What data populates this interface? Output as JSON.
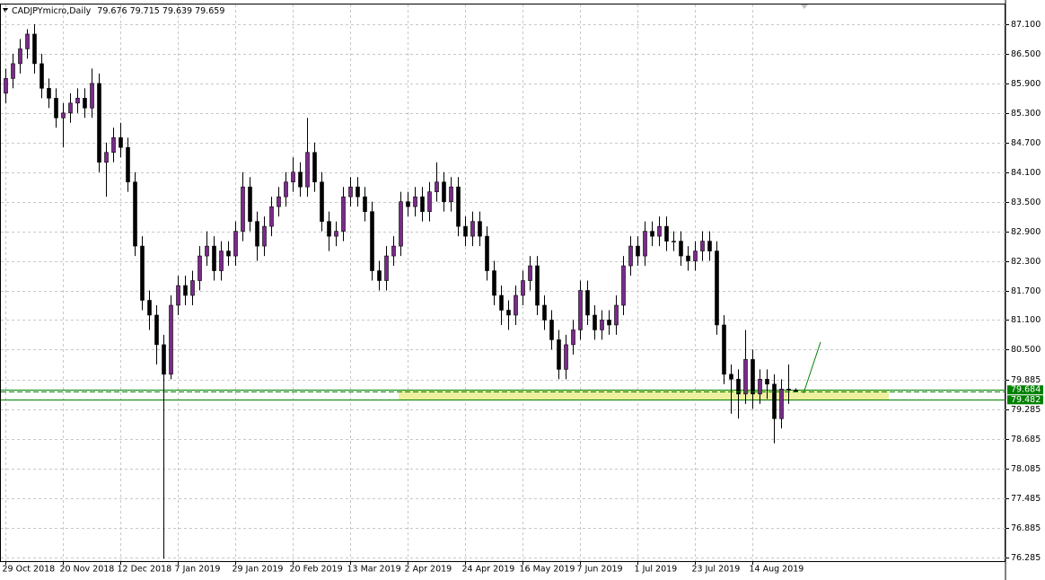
{
  "chart_data": {
    "type": "candlestick",
    "title": "CADJPYmicro,Daily",
    "categories": [
      "29 Oct 2018",
      null,
      null,
      null,
      null,
      null,
      null,
      null,
      "20 Nov 2018",
      null,
      null,
      null,
      null,
      null,
      null,
      null,
      "12 Dec 2018",
      null,
      null,
      null,
      null,
      null,
      null,
      null,
      "7 Jan 2019",
      null,
      null,
      null,
      null,
      null,
      null,
      null,
      "29 Jan 2019",
      null,
      null,
      null,
      null,
      null,
      null,
      null,
      "20 Feb 2019",
      null,
      null,
      null,
      null,
      null,
      null,
      null,
      "13 Mar 2019",
      null,
      null,
      null,
      null,
      null,
      null,
      null,
      "2 Apr 2019",
      null,
      null,
      null,
      null,
      null,
      null,
      null,
      "24 Apr 2019",
      null,
      null,
      null,
      null,
      null,
      null,
      null,
      "16 May 2019",
      null,
      null,
      null,
      null,
      null,
      null,
      null,
      "7 Jun 2019",
      null,
      null,
      null,
      null,
      null,
      null,
      null,
      "1 Jul 2019",
      null,
      null,
      null,
      null,
      null,
      null,
      null,
      "23 Jul 2019",
      null,
      null,
      null,
      null,
      null,
      null,
      null,
      "14 Aug 2019",
      null,
      null,
      null,
      null,
      null,
      null
    ],
    "open": [
      85.7,
      86.0,
      86.3,
      86.6,
      86.9,
      86.3,
      85.8,
      85.6,
      85.2,
      85.3,
      85.5,
      85.6,
      85.4,
      85.9,
      84.3,
      84.5,
      84.8,
      84.6,
      83.9,
      82.6,
      81.5,
      81.2,
      80.6,
      80.0,
      81.4,
      81.8,
      81.6,
      81.9,
      82.4,
      82.6,
      82.1,
      82.5,
      82.4,
      82.9,
      83.8,
      83.1,
      82.6,
      83.0,
      83.4,
      83.6,
      83.9,
      84.1,
      83.8,
      84.5,
      83.9,
      83.1,
      82.8,
      82.9,
      83.6,
      83.8,
      83.6,
      83.3,
      82.1,
      81.9,
      82.4,
      82.6,
      83.5,
      83.4,
      83.6,
      83.3,
      83.7,
      83.9,
      83.5,
      83.8,
      83.0,
      82.8,
      83.1,
      82.8,
      82.1,
      81.6,
      81.3,
      81.2,
      81.6,
      81.9,
      82.2,
      81.4,
      81.1,
      80.7,
      80.1,
      80.6,
      80.9,
      81.7,
      81.2,
      80.9,
      81.1,
      81.0,
      81.4,
      82.2,
      82.6,
      82.4,
      82.9,
      82.8,
      83.0,
      82.7,
      82.7,
      82.4,
      82.3,
      82.5,
      82.7,
      82.5,
      81.0,
      80.0,
      79.9,
      79.6,
      80.3,
      79.6,
      79.9,
      79.8,
      79.1,
      79.7,
      79.676
    ],
    "high": [
      86.2,
      86.5,
      86.8,
      87.0,
      87.1,
      86.5,
      86.0,
      85.8,
      85.5,
      85.7,
      85.8,
      85.8,
      86.2,
      86.1,
      84.7,
      85.0,
      85.1,
      84.8,
      84.1,
      82.8,
      81.7,
      81.4,
      80.8,
      81.6,
      82.0,
      82.0,
      82.1,
      82.6,
      82.9,
      82.8,
      82.7,
      82.7,
      83.1,
      84.1,
      84.0,
      83.3,
      83.2,
      83.6,
      83.8,
      84.1,
      84.4,
      84.3,
      85.2,
      84.7,
      84.1,
      83.3,
      83.1,
      83.8,
      84.0,
      84.0,
      83.8,
      83.5,
      82.3,
      82.6,
      82.8,
      83.7,
      83.7,
      83.8,
      83.8,
      83.9,
      84.3,
      84.1,
      84.0,
      84.0,
      83.2,
      83.3,
      83.3,
      83.0,
      82.3,
      81.8,
      81.5,
      81.8,
      82.1,
      82.4,
      82.4,
      81.6,
      81.3,
      80.9,
      80.8,
      81.1,
      81.9,
      81.9,
      81.4,
      81.3,
      81.3,
      81.6,
      82.4,
      82.8,
      82.8,
      83.1,
      83.1,
      83.2,
      83.2,
      82.9,
      82.9,
      82.6,
      82.7,
      82.9,
      82.9,
      82.7,
      81.2,
      80.2,
      80.1,
      80.9,
      80.5,
      80.1,
      80.1,
      80.0,
      79.9,
      80.2,
      79.715
    ],
    "low": [
      85.5,
      85.8,
      86.1,
      86.4,
      86.1,
      85.6,
      85.4,
      85.0,
      84.6,
      85.1,
      85.3,
      85.2,
      85.2,
      84.1,
      83.6,
      84.3,
      84.4,
      83.7,
      82.4,
      81.3,
      80.9,
      80.2,
      76.26,
      79.9,
      81.2,
      81.4,
      81.4,
      81.7,
      82.2,
      81.9,
      81.9,
      82.2,
      82.2,
      82.7,
      82.9,
      82.3,
      82.4,
      82.8,
      83.2,
      83.4,
      83.7,
      83.6,
      83.6,
      83.7,
      82.9,
      82.5,
      82.6,
      82.7,
      83.4,
      83.4,
      83.1,
      81.9,
      81.7,
      81.7,
      82.2,
      82.4,
      83.2,
      83.2,
      83.1,
      83.1,
      83.5,
      83.3,
      83.3,
      82.8,
      82.6,
      82.6,
      82.6,
      81.9,
      81.4,
      81.0,
      80.9,
      81.0,
      81.4,
      81.7,
      81.2,
      80.9,
      80.5,
      79.9,
      79.9,
      80.4,
      80.7,
      81.0,
      80.7,
      80.7,
      80.8,
      80.8,
      81.2,
      82.0,
      82.2,
      82.2,
      82.6,
      82.6,
      82.5,
      82.5,
      82.2,
      82.1,
      82.1,
      82.3,
      82.3,
      80.8,
      79.8,
      79.2,
      79.1,
      79.4,
      79.3,
      79.4,
      79.5,
      78.6,
      78.9,
      79.4,
      79.639
    ],
    "close": [
      86.0,
      86.3,
      86.6,
      86.9,
      86.3,
      85.8,
      85.6,
      85.2,
      85.3,
      85.5,
      85.6,
      85.4,
      85.9,
      84.3,
      84.5,
      84.8,
      84.6,
      83.9,
      82.6,
      81.5,
      81.2,
      80.6,
      80.0,
      81.4,
      81.8,
      81.6,
      81.9,
      82.4,
      82.6,
      82.1,
      82.5,
      82.4,
      82.9,
      83.8,
      83.1,
      82.6,
      83.0,
      83.4,
      83.6,
      83.9,
      84.1,
      83.8,
      84.5,
      83.9,
      83.1,
      82.8,
      82.9,
      83.6,
      83.8,
      83.6,
      83.3,
      82.1,
      81.9,
      82.4,
      82.6,
      83.5,
      83.4,
      83.6,
      83.3,
      83.7,
      83.9,
      83.5,
      83.8,
      83.0,
      82.8,
      83.1,
      82.8,
      82.1,
      81.6,
      81.3,
      81.2,
      81.6,
      81.9,
      82.2,
      81.4,
      81.1,
      80.7,
      80.1,
      80.6,
      80.9,
      81.7,
      81.2,
      80.9,
      81.1,
      81.0,
      81.4,
      82.2,
      82.6,
      82.4,
      82.9,
      82.8,
      83.0,
      82.7,
      82.7,
      82.4,
      82.3,
      82.5,
      82.7,
      82.5,
      81.0,
      80.0,
      79.9,
      79.6,
      80.3,
      79.6,
      79.9,
      79.8,
      79.1,
      79.7,
      79.676,
      79.659
    ],
    "up_color": "#7a2a8a",
    "down_color": "#000000",
    "level_color": "#008000",
    "zone_color": "#eef0a0",
    "levels": [
      79.684,
      79.482
    ],
    "ylim": [
      76.21,
      87.5
    ],
    "yticks": [
      {
        "value": 87.1,
        "label": "87.100"
      },
      {
        "value": 86.5,
        "label": "86.500"
      },
      {
        "value": 85.9,
        "label": "85.900"
      },
      {
        "value": 85.3,
        "label": "85.300"
      },
      {
        "value": 84.7,
        "label": "84.700"
      },
      {
        "value": 84.1,
        "label": "84.100"
      },
      {
        "value": 83.5,
        "label": "83.500"
      },
      {
        "value": 82.9,
        "label": "82.900"
      },
      {
        "value": 82.3,
        "label": "82.300"
      },
      {
        "value": 81.7,
        "label": "81.700"
      },
      {
        "value": 81.1,
        "label": "81.100"
      },
      {
        "value": 80.5,
        "label": "80.500"
      },
      79.885,
      79.285,
      78.685,
      78.085,
      77.485,
      76.885,
      76.285
    ],
    "grid": true
  }
}
